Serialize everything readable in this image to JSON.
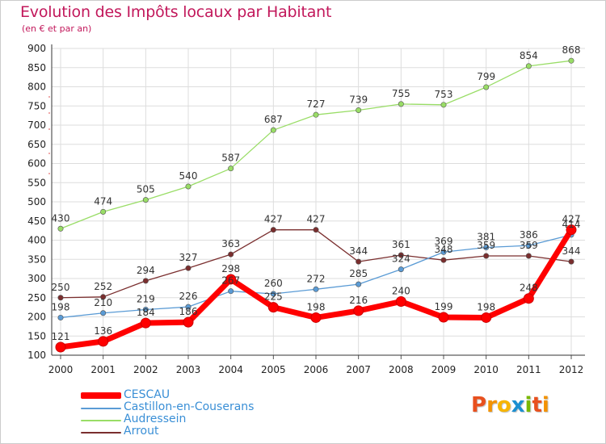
{
  "title": "Evolution des Impôts locaux par Habitant",
  "subtitle": "(en € et par an)",
  "logo": {
    "text": "Proxiti",
    "colors": [
      "#e8501e",
      "#f39200",
      "#f7b500",
      "#1b8fd0",
      "#7ab800",
      "#e8501e",
      "#f39200"
    ]
  },
  "chart_data": {
    "type": "line",
    "title": "Evolution des Impôts locaux par Habitant",
    "subtitle": "(en € et par an)",
    "x": [
      "2000",
      "2001",
      "2002",
      "2003",
      "2004",
      "2005",
      "2006",
      "2007",
      "2008",
      "2009",
      "2010",
      "2011",
      "2012"
    ],
    "ylim": [
      100,
      900
    ],
    "yticks": [
      "100",
      "150",
      "200",
      "250",
      "300",
      "350",
      "400",
      "450",
      "500",
      "550",
      "600",
      "650",
      "700",
      "750",
      "800",
      "850",
      "900"
    ],
    "grid": true,
    "legend_position": "bottom-left",
    "series": [
      {
        "name": "CESCAU",
        "color": "#ff0000",
        "values": [
          121,
          136,
          184,
          186,
          298,
          225,
          198,
          216,
          240,
          199,
          198,
          248,
          427
        ],
        "labels": [
          "121",
          "136",
          "184",
          "186",
          "298",
          "225",
          "198",
          "216",
          "240",
          "199",
          "198",
          "248",
          "427"
        ]
      },
      {
        "name": "Castillon-en-Couserans",
        "color": "#5a9bd5",
        "values": [
          198,
          210,
          219,
          226,
          267,
          260,
          272,
          285,
          324,
          369,
          381,
          386,
          414
        ],
        "labels": [
          "198",
          "210",
          "219",
          "226",
          "267",
          "260",
          "272",
          "285",
          "324",
          "369",
          "381",
          "386",
          "414"
        ]
      },
      {
        "name": "Audressein",
        "color": "#99dd66",
        "values": [
          430,
          474,
          505,
          540,
          587,
          687,
          727,
          739,
          755,
          753,
          799,
          854,
          868
        ],
        "labels": [
          "430",
          "474",
          "505",
          "540",
          "587",
          "687",
          "727",
          "739",
          "755",
          "753",
          "799",
          "854",
          "868"
        ]
      },
      {
        "name": "Arrout",
        "color": "#7a2e2e",
        "values": [
          250,
          252,
          294,
          327,
          363,
          427,
          427,
          344,
          361,
          348,
          359,
          359,
          344
        ],
        "labels": [
          "250",
          "252",
          "294",
          "327",
          "363",
          "427",
          "427",
          "344",
          "361",
          "348",
          "359",
          "359",
          "344"
        ]
      }
    ]
  },
  "legend": [
    {
      "label": "CESCAU",
      "color": "#ff0000"
    },
    {
      "label": "Castillon-en-Couserans",
      "color": "#5a9bd5"
    },
    {
      "label": "Audressein",
      "color": "#99dd66"
    },
    {
      "label": "Arrout",
      "color": "#7a2e2e"
    }
  ]
}
